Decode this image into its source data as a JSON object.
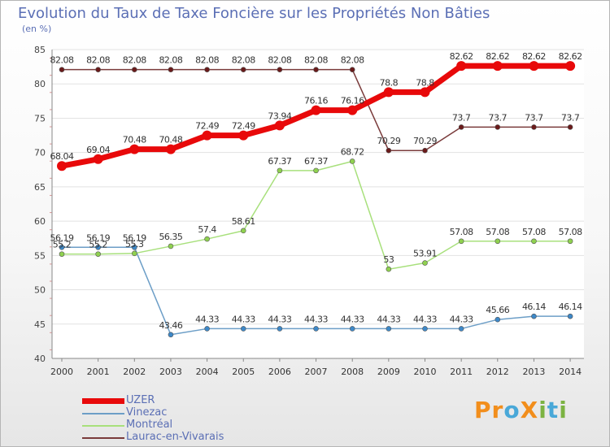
{
  "title": "Evolution du Taux de Taxe Foncière sur les Propriétés Non Bâties",
  "subtitle": "(en %)",
  "logo": {
    "text": "ProXiti",
    "letters": [
      "P",
      "r",
      "o",
      "X",
      "i",
      "t",
      "i"
    ],
    "colors": [
      "#f28e1c",
      "#f28e1c",
      "#49a8d8",
      "#f28e1c",
      "#7cb342",
      "#49a8d8",
      "#7cb342"
    ]
  },
  "chart_data": {
    "type": "line",
    "title": "Evolution du Taux de Taxe Foncière sur les Propriétés Non Bâties",
    "ylabel": "(en %)",
    "xlabel": "",
    "ylim": [
      40,
      85
    ],
    "yticks": [
      40,
      45,
      50,
      55,
      60,
      65,
      70,
      75,
      80,
      85
    ],
    "categories": [
      "2000",
      "2001",
      "2002",
      "2003",
      "2004",
      "2005",
      "2006",
      "2007",
      "2008",
      "2009",
      "2010",
      "2011",
      "2012",
      "2013",
      "2014"
    ],
    "series": [
      {
        "name": "UZER",
        "color": "#e8090a",
        "marker": "#e8090a",
        "width": 7,
        "values": [
          68.04,
          69.04,
          70.48,
          70.48,
          72.49,
          72.49,
          73.94,
          76.16,
          76.16,
          78.8,
          78.8,
          82.62,
          82.62,
          82.62,
          82.62
        ],
        "labels": [
          "68.04",
          "69.04",
          "70.48",
          "70.48",
          "72.49",
          "72.49",
          "73.94",
          "76.16",
          "76.16",
          "78.8",
          "78.8",
          "82.62",
          "82.62",
          "82.62",
          "82.62"
        ]
      },
      {
        "name": "Vinezac",
        "color": "#6c9ec7",
        "marker": "#3d88c8",
        "width": 1.5,
        "values": [
          56.19,
          56.19,
          56.19,
          43.46,
          44.33,
          44.33,
          44.33,
          44.33,
          44.33,
          44.33,
          44.33,
          44.33,
          45.66,
          46.14,
          46.14
        ],
        "labels": [
          "56.19",
          "56.19",
          "56.19",
          "43.46",
          "44.33",
          "44.33",
          "44.33",
          "44.33",
          "44.33",
          "44.33",
          "44.33",
          "44.33",
          "45.66",
          "46.14",
          "46.14"
        ]
      },
      {
        "name": "Montréal",
        "color": "#a8e07c",
        "marker": "#8fd14f",
        "width": 1.5,
        "values": [
          55.2,
          55.2,
          55.3,
          56.35,
          57.4,
          58.61,
          67.37,
          67.37,
          68.72,
          53,
          53.91,
          57.08,
          57.08,
          57.08,
          57.08
        ],
        "labels": [
          "55.2",
          "55.2",
          "55.3",
          "56.35",
          "57.4",
          "58.61",
          "67.37",
          "67.37",
          "68.72",
          "53",
          "53.91",
          "57.08",
          "57.08",
          "57.08",
          "57.08"
        ]
      },
      {
        "name": "Laurac-en-Vivarais",
        "color": "#7a3b3b",
        "marker": "#6a1a1a",
        "width": 1.5,
        "values": [
          82.08,
          82.08,
          82.08,
          82.08,
          82.08,
          82.08,
          82.08,
          82.08,
          82.08,
          70.29,
          70.29,
          73.7,
          73.7,
          73.7,
          73.7
        ],
        "labels": [
          "82.08",
          "82.08",
          "82.08",
          "82.08",
          "82.08",
          "82.08",
          "82.08",
          "82.08",
          "82.08",
          "70.29",
          "70.29",
          "73.7",
          "73.7",
          "73.7",
          "73.7"
        ]
      }
    ]
  }
}
